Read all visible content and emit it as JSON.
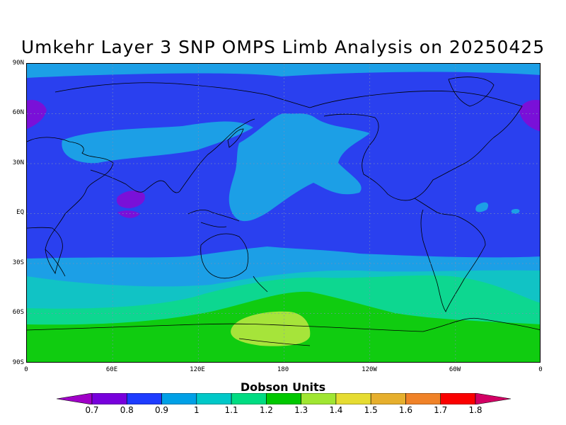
{
  "title": "Umkehr Layer 3 SNP OMPS Limb Analysis on 20250425",
  "lat_labels": [
    "90N",
    "60N",
    "30N",
    "EQ",
    "30S",
    "60S",
    "90S"
  ],
  "lon_labels": [
    "0",
    "60E",
    "120E",
    "180",
    "120W",
    "60W",
    "0"
  ],
  "colorbar": {
    "title": "Dobson Units",
    "levels": [
      "0.7",
      "0.8",
      "0.9",
      "1",
      "1.1",
      "1.2",
      "1.3",
      "1.4",
      "1.5",
      "1.6",
      "1.7",
      "1.8"
    ],
    "colors": [
      "#a000c8",
      "#7800dc",
      "#1e3cff",
      "#00a0e6",
      "#00c8c8",
      "#00dc82",
      "#00c800",
      "#a0e632",
      "#e6dc32",
      "#e6af2d",
      "#f08228",
      "#fa0000",
      "#d20064"
    ]
  },
  "map": {
    "projection": "equirectangular",
    "grid": "dotted",
    "band_colors": {
      "band_0_8_to_0_9": "#2a40ef",
      "band_0_9_to_1_0": "#1c9fe6",
      "band_1_0_to_1_1": "#11c3c5",
      "band_1_1_to_1_2": "#0dd790",
      "band_1_2_to_1_3": "#10cc10",
      "band_1_3_to_1_4": "#a6e43a",
      "band_0_7_to_0_8": "#7a10d8"
    }
  }
}
